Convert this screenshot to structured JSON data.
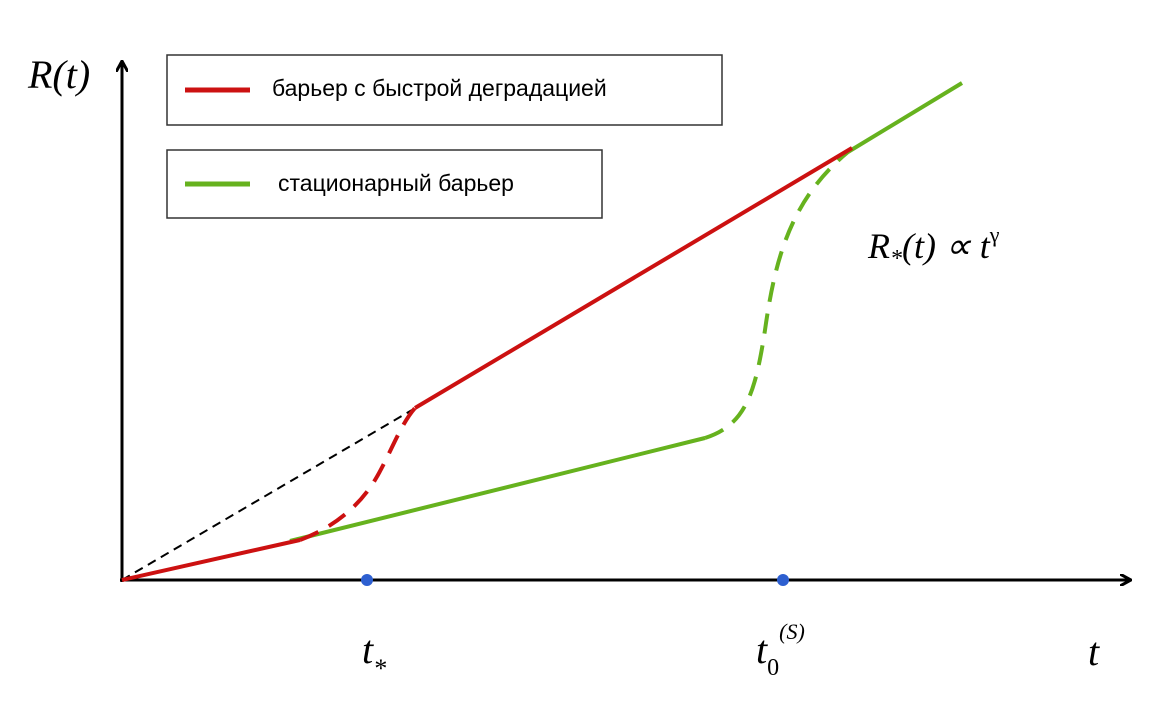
{
  "y_axis_label": "R(t)",
  "x_axis_label": "t",
  "legend": [
    {
      "label": "барьер с быстрой деградацией"
    },
    {
      "label": "стационарный барьер"
    }
  ],
  "annotation": {
    "base": "R",
    "subscript": "*",
    "middle": "(t) ∝ t",
    "superscript": "γ"
  },
  "x_markers": [
    {
      "base": "t",
      "subscript": "*"
    },
    {
      "base": "t",
      "subscript": "0",
      "superscript": "(S)"
    }
  ]
}
